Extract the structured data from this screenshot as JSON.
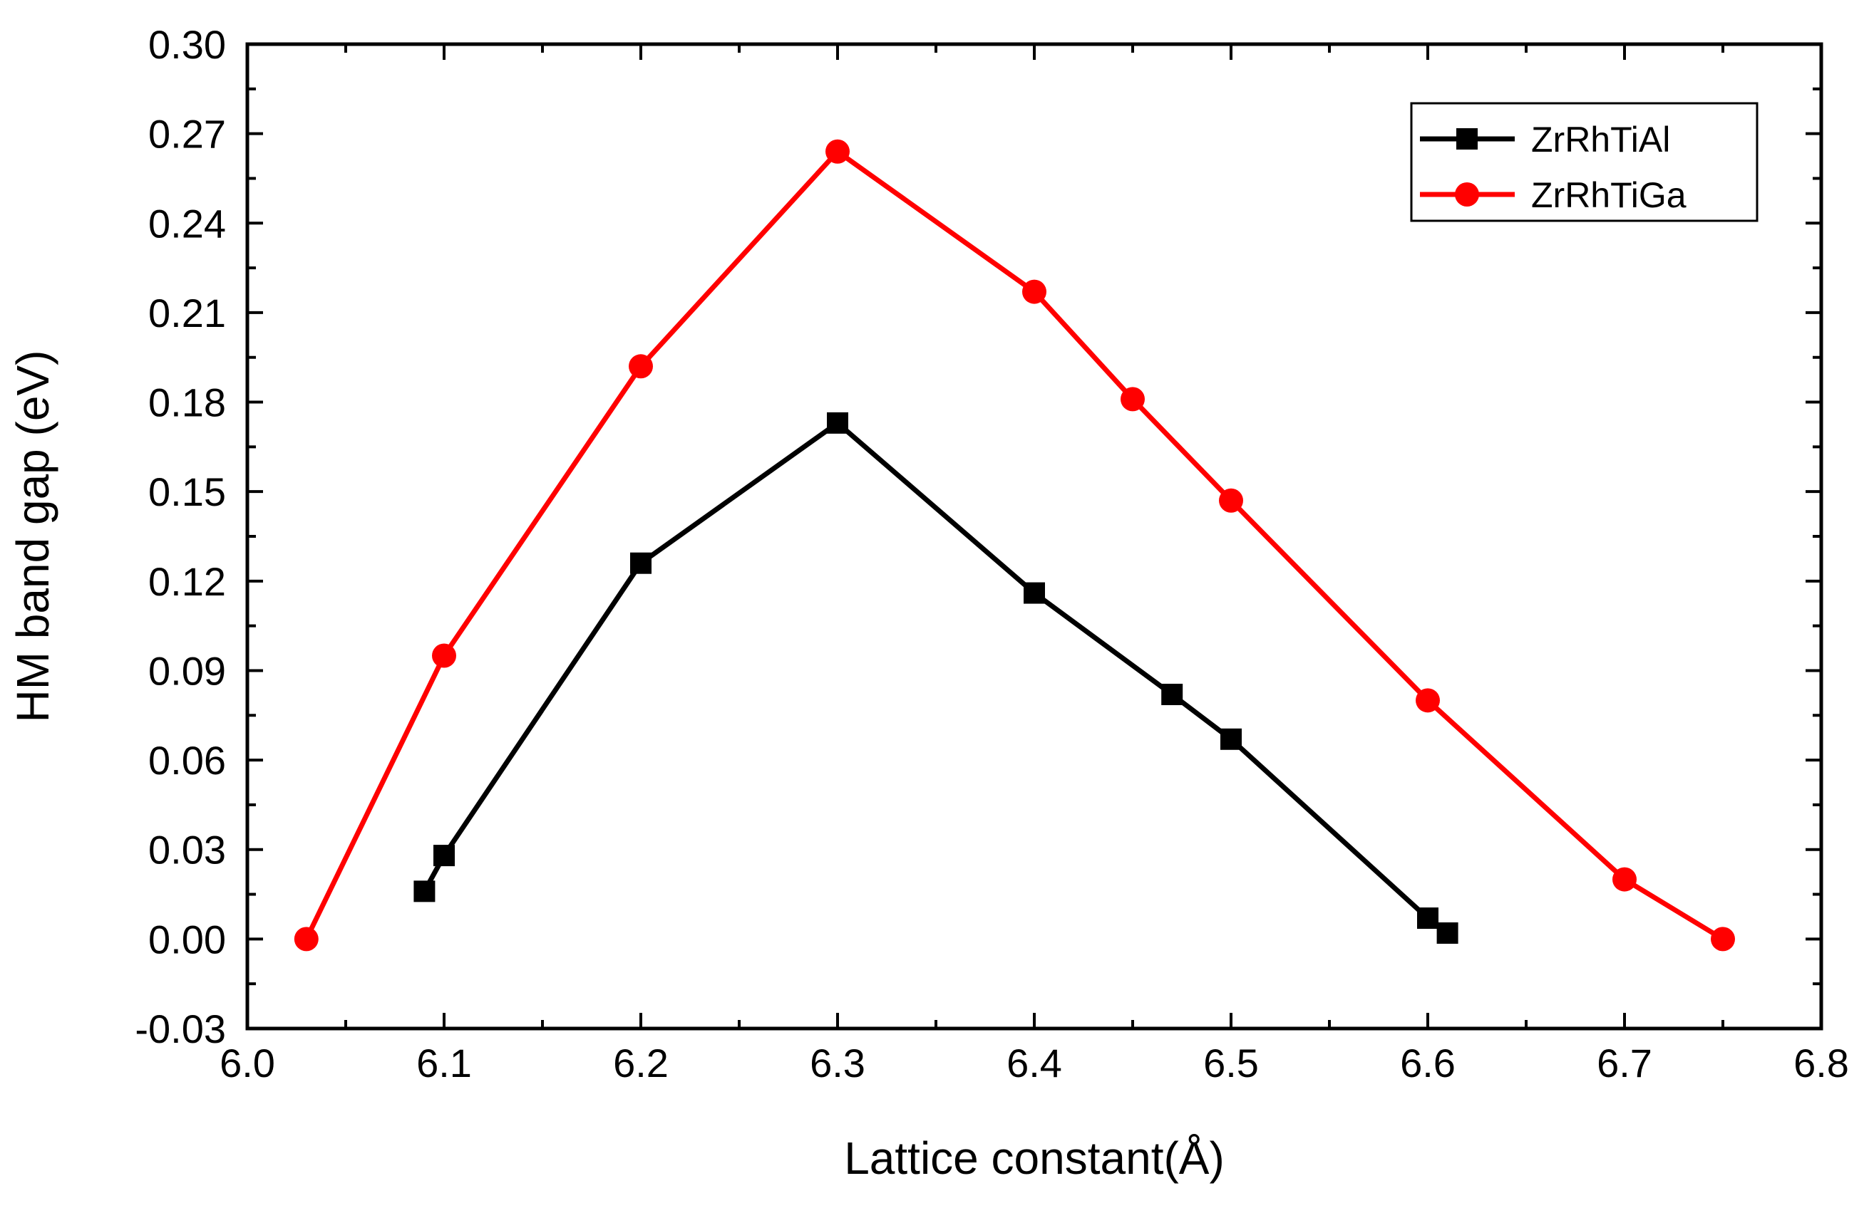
{
  "chart_data": {
    "type": "line",
    "xlabel": "Lattice constant(Å)",
    "ylabel": "HM band gap (eV)",
    "xlim": [
      6.0,
      6.8
    ],
    "ylim": [
      -0.03,
      0.3
    ],
    "x_ticks": [
      "6.0",
      "6.1",
      "6.2",
      "6.3",
      "6.4",
      "6.5",
      "6.6",
      "6.7",
      "6.8"
    ],
    "y_ticks": [
      "-0.03",
      "0.00",
      "0.03",
      "0.06",
      "0.09",
      "0.12",
      "0.15",
      "0.18",
      "0.21",
      "0.24",
      "0.27",
      "0.30"
    ],
    "grid": false,
    "legend_position": "top-right",
    "series": [
      {
        "name": "ZrRhTiAl",
        "color": "#000000",
        "marker": "square",
        "points": [
          {
            "x": 6.09,
            "y": 0.016
          },
          {
            "x": 6.1,
            "y": 0.028
          },
          {
            "x": 6.2,
            "y": 0.126
          },
          {
            "x": 6.3,
            "y": 0.173
          },
          {
            "x": 6.4,
            "y": 0.116
          },
          {
            "x": 6.47,
            "y": 0.082
          },
          {
            "x": 6.5,
            "y": 0.067
          },
          {
            "x": 6.6,
            "y": 0.007
          },
          {
            "x": 6.61,
            "y": 0.002
          }
        ]
      },
      {
        "name": "ZrRhTiGa",
        "color": "#ff0000",
        "marker": "circle",
        "points": [
          {
            "x": 6.03,
            "y": 0.0
          },
          {
            "x": 6.1,
            "y": 0.095
          },
          {
            "x": 6.2,
            "y": 0.192
          },
          {
            "x": 6.3,
            "y": 0.264
          },
          {
            "x": 6.4,
            "y": 0.217
          },
          {
            "x": 6.45,
            "y": 0.181
          },
          {
            "x": 6.5,
            "y": 0.147
          },
          {
            "x": 6.6,
            "y": 0.08
          },
          {
            "x": 6.7,
            "y": 0.02
          },
          {
            "x": 6.75,
            "y": 0.0
          }
        ]
      }
    ]
  }
}
